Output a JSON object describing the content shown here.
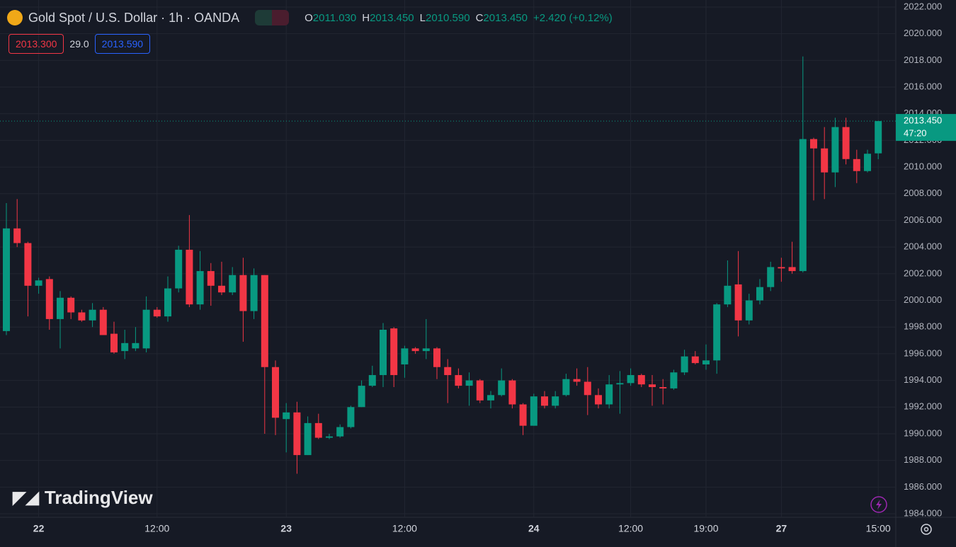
{
  "chart_data": {
    "type": "candlestick",
    "title": "Gold Spot / U.S. Dollar · 1h · OANDA",
    "ohlc_legend": {
      "open_label": "O",
      "open": "2011.030",
      "high_label": "H",
      "high": "2013.450",
      "low_label": "L",
      "low": "2010.590",
      "close_label": "C",
      "close": "2013.450",
      "change": "+2.420 (+0.12%)"
    },
    "sell_price": "2013.300",
    "spread": "29.0",
    "buy_price": "2013.590",
    "last_price_label": "2013.450",
    "countdown": "47:20",
    "watermark": "TradingView",
    "up_color": "#089981",
    "down_color": "#f23645",
    "categories": [
      null,
      null,
      null,
      "22",
      null,
      null,
      null,
      null,
      null,
      null,
      null,
      null,
      null,
      null,
      "12:00",
      null,
      null,
      null,
      null,
      null,
      null,
      null,
      null,
      null,
      null,
      null,
      "23",
      null,
      null,
      null,
      null,
      null,
      null,
      null,
      null,
      null,
      null,
      "12:00",
      null,
      null,
      null,
      null,
      null,
      null,
      null,
      null,
      null,
      null,
      null,
      "24",
      null,
      null,
      null,
      null,
      null,
      null,
      null,
      null,
      "12:00",
      null,
      null,
      null,
      null,
      null,
      null,
      "19:00",
      null,
      null,
      null,
      null,
      null,
      null,
      "27",
      null,
      null,
      null,
      null,
      null,
      null,
      null,
      null,
      "15:00"
    ],
    "open": [
      1997.7,
      2005.4,
      2004.3,
      2001.1,
      2001.6,
      1998.6,
      2000.2,
      1999.1,
      1998.5,
      1999.3,
      1997.5,
      1996.2,
      1996.4,
      1996.4,
      1999.3,
      1998.8,
      2000.9,
      2003.8,
      1999.7,
      2002.2,
      2001.1,
      2000.6,
      2001.9,
      1999.2,
      2001.9,
      1995.0,
      1991.1,
      1991.6,
      1988.4,
      1990.8,
      1989.7,
      1989.8,
      1990.5,
      1992.0,
      1993.6,
      1994.4,
      1997.9,
      1995.2,
      1996.4,
      1996.2,
      1996.4,
      1995.0,
      1994.4,
      1993.6,
      1994.0,
      1992.5,
      1992.9,
      1994.0,
      1992.2,
      1990.6,
      1992.8,
      1992.1,
      1992.9,
      1994.1,
      1993.9,
      1992.9,
      1992.2,
      1993.7,
      1993.8,
      1994.4,
      1993.7,
      1993.5,
      1993.4,
      1994.6,
      1995.8,
      1995.2,
      1995.5,
      1999.7,
      2001.2,
      1998.5,
      2000.0,
      2001.0,
      2002.5,
      2002.5,
      2002.2,
      2012.1,
      2011.4,
      2009.6,
      2013.0,
      2010.6,
      2009.7,
      2011.03
    ],
    "high": [
      2007.3,
      2007.6,
      2004.4,
      2001.7,
      2001.8,
      2000.7,
      2000.3,
      1999.3,
      1999.8,
      1999.5,
      1998.4,
      1997.8,
      1998.0,
      2000.3,
      1999.5,
      2001.8,
      2004.1,
      2006.4,
      2003.7,
      2002.8,
      2002.9,
      2002.5,
      2003.2,
      2002.4,
      2001.9,
      1995.5,
      1992.3,
      1992.4,
      1991.3,
      1991.5,
      1990.0,
      1990.7,
      1992.1,
      1994.0,
      1995.1,
      1998.3,
      1998.0,
      1996.6,
      1996.5,
      1998.6,
      1996.5,
      1995.6,
      1994.9,
      1994.6,
      1994.1,
      1993.2,
      1994.9,
      1994.1,
      1992.3,
      1993.0,
      1993.2,
      1993.2,
      1994.5,
      1994.9,
      1995.0,
      1993.4,
      1994.4,
      1994.7,
      1994.9,
      1994.5,
      1994.4,
      1994.1,
      1994.8,
      1996.3,
      1996.2,
      1996.7,
      1999.8,
      2003.0,
      2003.7,
      2000.5,
      2001.6,
      2002.9,
      2003.2,
      2004.4,
      2018.3,
      2012.2,
      2013.0,
      2013.7,
      2013.7,
      2011.3,
      2011.3,
      2013.45
    ],
    "low": [
      1997.4,
      2004.0,
      1998.8,
      2000.5,
      1997.8,
      1996.4,
      1998.6,
      1998.4,
      1998.0,
      1997.4,
      1996.0,
      1995.6,
      1996.2,
      1996.1,
      1998.7,
      1998.4,
      2000.6,
      1999.5,
      1999.3,
      1999.6,
      2000.4,
      2000.4,
      1996.9,
      1998.6,
      1990.0,
      1989.9,
      1988.6,
      1987.0,
      1988.4,
      1989.6,
      1989.6,
      1989.7,
      1990.4,
      1992.0,
      1993.5,
      1993.5,
      1993.5,
      1994.2,
      1996.0,
      1995.6,
      1994.1,
      1992.3,
      1993.4,
      1992.1,
      1992.3,
      1991.9,
      1992.8,
      1991.9,
      1989.9,
      1990.6,
      1991.9,
      1991.9,
      1992.8,
      1993.6,
      1991.4,
      1991.9,
      1991.9,
      1991.5,
      1993.6,
      1993.5,
      1992.1,
      1992.2,
      1993.3,
      1994.4,
      1995.2,
      1994.8,
      1994.5,
      1999.5,
      1997.3,
      1998.2,
      1999.7,
      2000.7,
      2001.4,
      2002.0,
      2002.1,
      2007.5,
      2007.6,
      2008.5,
      2010.2,
      2008.8,
      2009.6,
      2010.59
    ],
    "close": [
      2005.4,
      2004.3,
      2001.1,
      2001.5,
      1998.6,
      2000.2,
      1999.1,
      1998.5,
      1999.3,
      1997.4,
      1996.1,
      1996.8,
      1996.8,
      1999.3,
      1998.8,
      2000.9,
      2003.8,
      1999.7,
      2002.2,
      2001.1,
      2000.6,
      2001.9,
      1999.2,
      2001.9,
      1995.0,
      1991.2,
      1991.6,
      1988.4,
      1990.8,
      1989.7,
      1989.8,
      1990.5,
      1992.0,
      1993.6,
      1994.4,
      1997.8,
      1994.4,
      1996.4,
      1996.2,
      1996.4,
      1995.0,
      1994.4,
      1993.6,
      1994.0,
      1992.5,
      1992.9,
      1994.0,
      1992.2,
      1990.6,
      1992.8,
      1992.1,
      1992.8,
      1994.1,
      1993.9,
      1992.9,
      1992.2,
      1993.7,
      1993.8,
      1994.4,
      1993.7,
      1993.5,
      1993.4,
      1994.6,
      1995.8,
      1995.3,
      1995.5,
      1999.7,
      2001.1,
      1998.5,
      2000.0,
      2001.0,
      2002.5,
      2002.4,
      2002.2,
      2012.1,
      2011.4,
      2009.6,
      2013.0,
      2010.6,
      2009.7,
      2011.0,
      2013.45
    ],
    "ylim": [
      1984,
      2022
    ],
    "yticks": [
      {
        "value": 1984,
        "label": "1984.000"
      },
      {
        "value": 1986,
        "label": "1986.000"
      },
      {
        "value": 1988,
        "label": "1988.000"
      },
      {
        "value": 1990,
        "label": "1990.000"
      },
      {
        "value": 1992,
        "label": "1992.000"
      },
      {
        "value": 1994,
        "label": "1994.000"
      },
      {
        "value": 1996,
        "label": "1996.000"
      },
      {
        "value": 1998,
        "label": "1998.000"
      },
      {
        "value": 2000,
        "label": "2000.000"
      },
      {
        "value": 2002,
        "label": "2002.000"
      },
      {
        "value": 2004,
        "label": "2004.000"
      },
      {
        "value": 2006,
        "label": "2006.000"
      },
      {
        "value": 2008,
        "label": "2008.000"
      },
      {
        "value": 2010,
        "label": "2010.000"
      },
      {
        "value": 2012,
        "label": "2012.000"
      },
      {
        "value": 2014,
        "label": "2014.000"
      },
      {
        "value": 2016,
        "label": "2016.000"
      },
      {
        "value": 2018,
        "label": "2018.000"
      },
      {
        "value": 2020,
        "label": "2020.000"
      },
      {
        "value": 2022,
        "label": "2022.000"
      }
    ],
    "grid": true
  }
}
